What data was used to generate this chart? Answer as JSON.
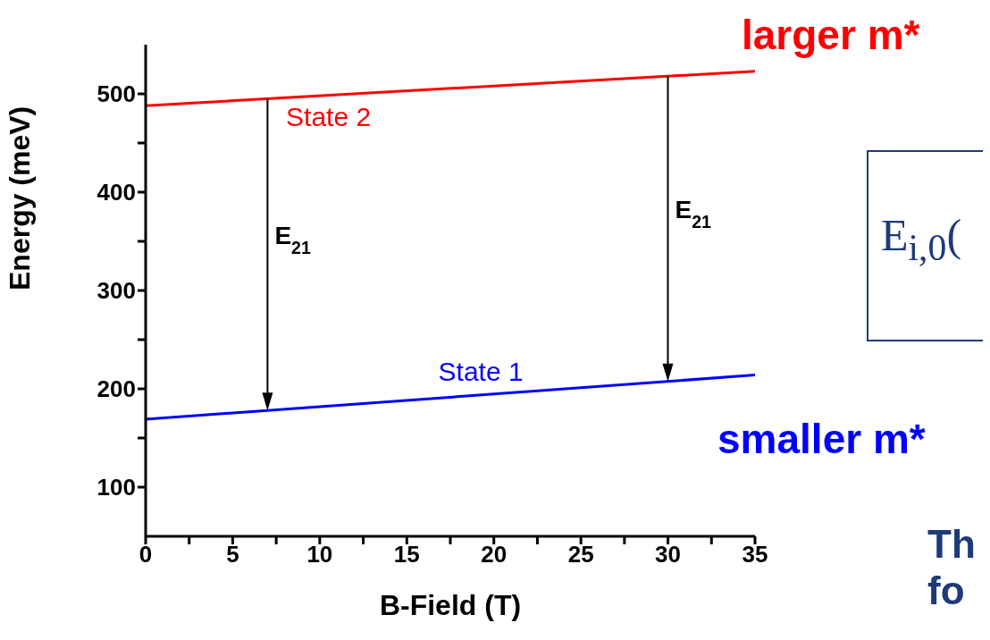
{
  "chart_data": {
    "type": "line",
    "xlabel": "B-Field (T)",
    "ylabel": "Energy (meV)",
    "xlim": [
      0,
      35
    ],
    "ylim": [
      50,
      550
    ],
    "xticks": [
      0,
      {
        "value": 2.5,
        "label": null
      },
      5,
      {
        "value": 7.5,
        "label": null
      },
      10,
      {
        "value": 12.5,
        "label": null
      },
      15,
      {
        "value": 17.5,
        "label": null
      },
      20,
      {
        "value": 22.5,
        "label": null
      },
      25,
      {
        "value": 27.5,
        "label": null
      },
      30,
      {
        "value": 32.5,
        "label": null
      },
      35
    ],
    "yticks": [
      100,
      {
        "value": 150,
        "label": null
      },
      200,
      {
        "value": 250,
        "label": null
      },
      300,
      {
        "value": 350,
        "label": null
      },
      400,
      {
        "value": 450,
        "label": null
      },
      500
    ],
    "x": [
      0,
      35
    ],
    "series": [
      {
        "name": "State 2",
        "color": "#ff0000",
        "values": [
          488,
          523
        ]
      },
      {
        "name": "State 1",
        "color": "#0000ff",
        "values": [
          169,
          214
        ]
      }
    ],
    "legend": false,
    "grid": false,
    "marker": "none",
    "line_style": "solid",
    "annotations": [
      "larger m*",
      "smaller m*",
      "E$_{i,0}$(",
      "Th",
      "fo",
      "E$_{21}$",
      "E$_{21}$"
    ]
  }
}
